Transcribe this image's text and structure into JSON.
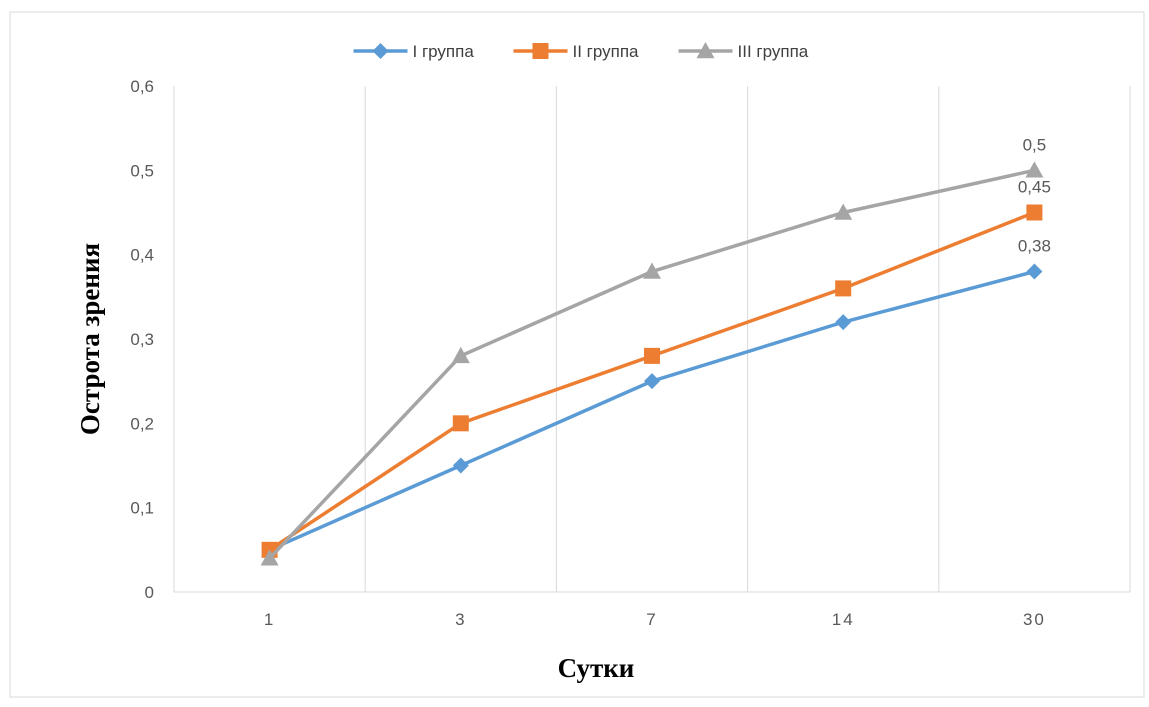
{
  "chart_data": {
    "type": "line",
    "title": "",
    "xlabel": "Сутки",
    "ylabel": "Острота зрения",
    "categories": [
      "1",
      "3",
      "7",
      "14",
      "30"
    ],
    "ylim": [
      0,
      0.6
    ],
    "yticks": [
      "0",
      "0,1",
      "0,2",
      "0,3",
      "0,4",
      "0,5",
      "0,6"
    ],
    "grid": "vertical",
    "legend_position": "top",
    "series": [
      {
        "name": "I группа",
        "values": [
          0.05,
          0.15,
          0.25,
          0.32,
          0.38
        ],
        "color": "#5B9BD5",
        "marker": "diamond"
      },
      {
        "name": "II группа",
        "values": [
          0.05,
          0.2,
          0.28,
          0.36,
          0.45
        ],
        "color": "#ED7D31",
        "marker": "square"
      },
      {
        "name": "III группа",
        "values": [
          0.04,
          0.28,
          0.38,
          0.45,
          0.5
        ],
        "color": "#A5A5A5",
        "marker": "triangle"
      }
    ],
    "data_labels": [
      {
        "series": 0,
        "index": 4,
        "text": "0,38"
      },
      {
        "series": 1,
        "index": 4,
        "text": "0,45"
      },
      {
        "series": 2,
        "index": 4,
        "text": "0,5"
      }
    ]
  }
}
